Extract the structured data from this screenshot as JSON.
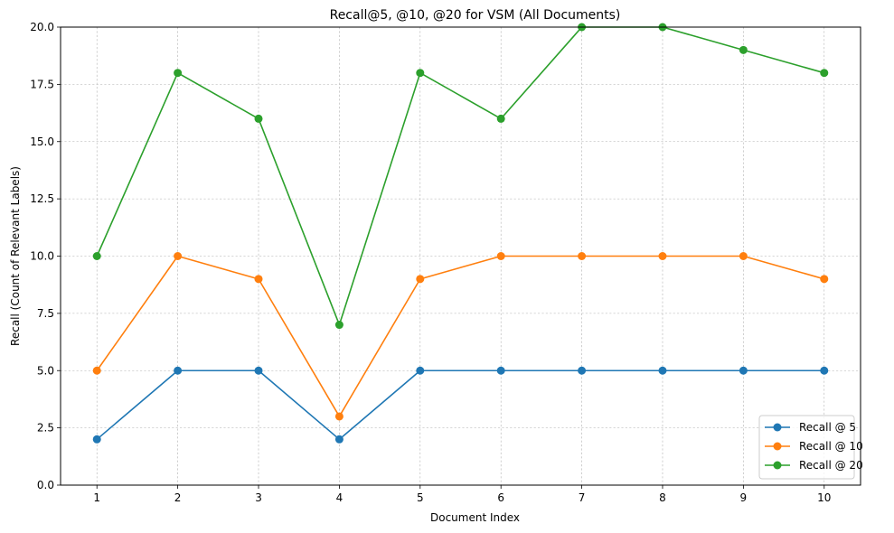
{
  "chart_data": {
    "type": "line",
    "title": "Recall@5, @10, @20 for VSM (All Documents)",
    "xlabel": "Document Index",
    "ylabel": "Recall (Count of Relevant Labels)",
    "x": [
      1,
      2,
      3,
      4,
      5,
      6,
      7,
      8,
      9,
      10
    ],
    "xticks": [
      "1",
      "2",
      "3",
      "4",
      "5",
      "6",
      "7",
      "8",
      "9",
      "10"
    ],
    "yticks": [
      "0.0",
      "2.5",
      "5.0",
      "7.5",
      "10.0",
      "12.5",
      "15.0",
      "17.5",
      "20.0"
    ],
    "ylim": [
      0,
      20
    ],
    "xlim": [
      0.55,
      10.45
    ],
    "grid": true,
    "legend_position": "lower-right",
    "series": [
      {
        "name": "Recall @ 5",
        "color": "#1f77b4",
        "values": [
          2,
          5,
          5,
          2,
          5,
          5,
          5,
          5,
          5,
          5
        ]
      },
      {
        "name": "Recall @ 10",
        "color": "#ff7f0e",
        "values": [
          5,
          10,
          9,
          3,
          9,
          10,
          10,
          10,
          10,
          9
        ]
      },
      {
        "name": "Recall @ 20",
        "color": "#2ca02c",
        "values": [
          10,
          18,
          16,
          7,
          18,
          16,
          20,
          20,
          19,
          18
        ]
      }
    ]
  }
}
